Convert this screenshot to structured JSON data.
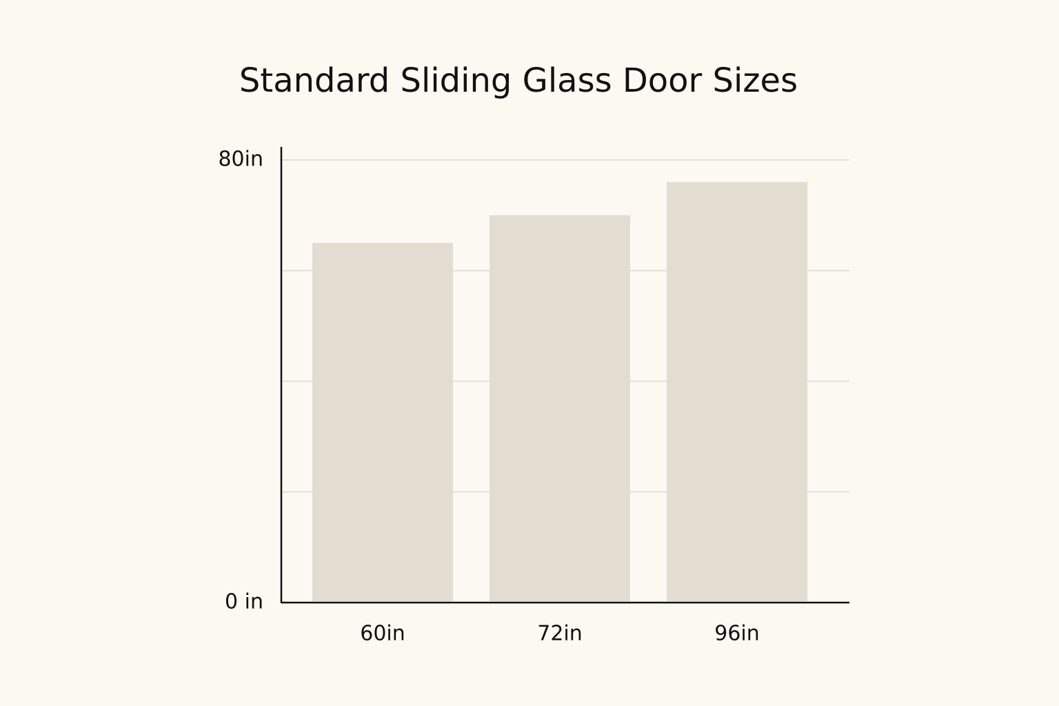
{
  "chart_data": {
    "type": "bar",
    "title": "Standard Sliding Glass Door Sizes",
    "categories": [
      "60in",
      "72in",
      "96in"
    ],
    "values": [
      65,
      70,
      76
    ],
    "color": "#e3ddd1",
    "ylim": [
      0,
      80
    ],
    "yticks": [
      {
        "value": 0,
        "label": "0 in"
      },
      {
        "value": 80,
        "label": "80in"
      }
    ],
    "gridlines": [
      20,
      40,
      60,
      80
    ]
  }
}
